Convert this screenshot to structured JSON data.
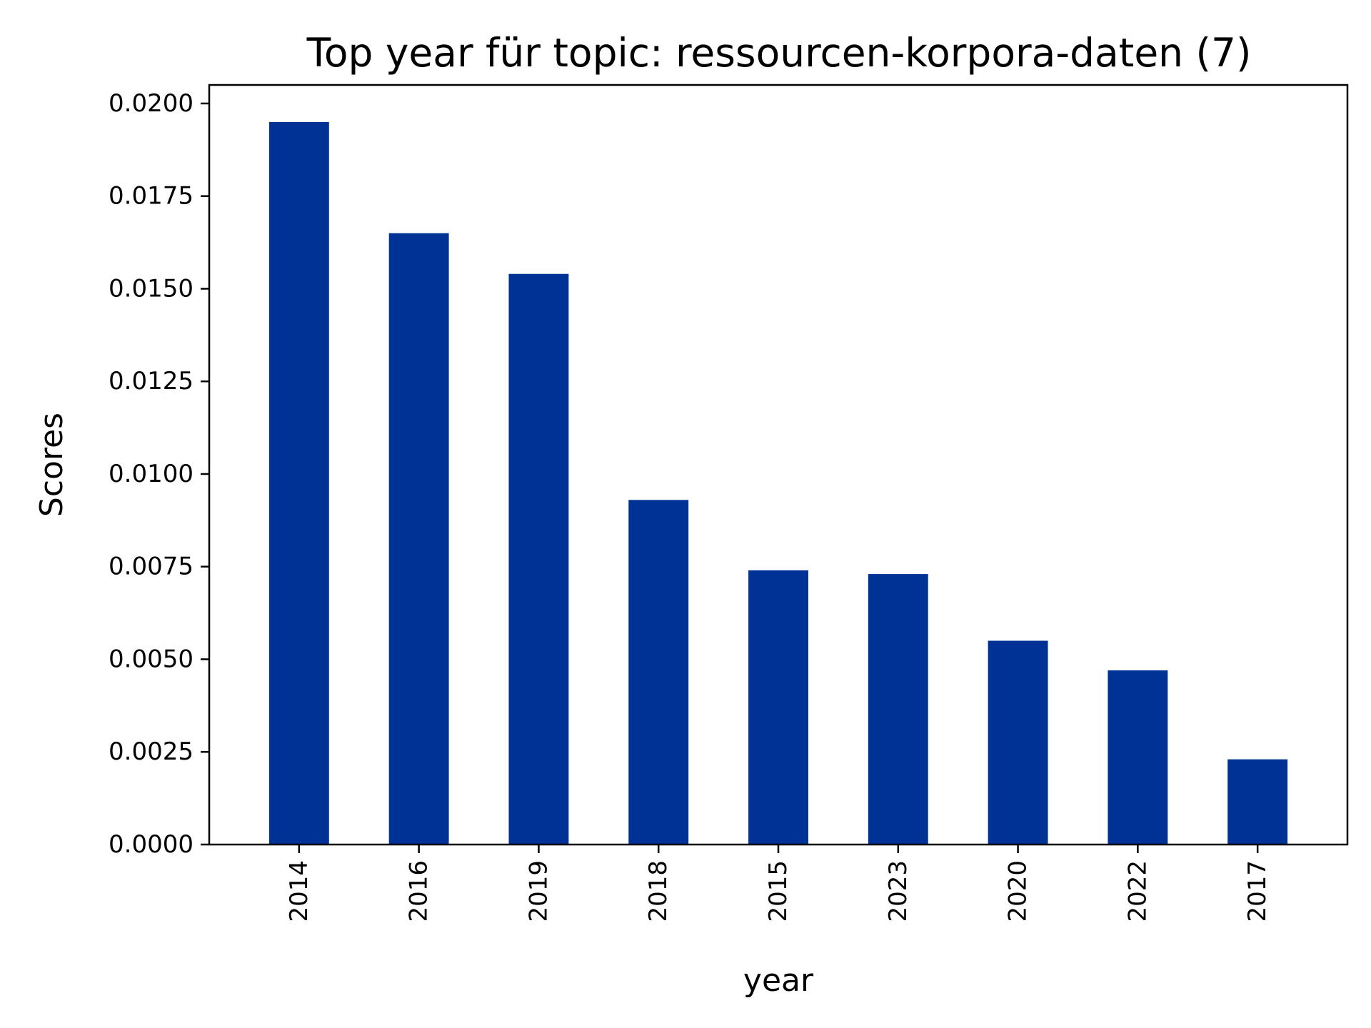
{
  "chart_data": {
    "type": "bar",
    "title": "Top year für topic: ressourcen-korpora-daten (7)",
    "xlabel": "year",
    "ylabel": "Scores",
    "categories": [
      "2014",
      "2016",
      "2019",
      "2018",
      "2015",
      "2023",
      "2020",
      "2022",
      "2017"
    ],
    "values": [
      0.0195,
      0.0165,
      0.0154,
      0.0093,
      0.0074,
      0.0073,
      0.0055,
      0.0047,
      0.0023
    ],
    "ylim": [
      0,
      0.0205
    ],
    "yticks": [
      "0.0000",
      "0.0025",
      "0.0050",
      "0.0075",
      "0.0100",
      "0.0125",
      "0.0150",
      "0.0175",
      "0.0200"
    ],
    "bar_color": "#003296",
    "grid": false,
    "legend": false
  }
}
